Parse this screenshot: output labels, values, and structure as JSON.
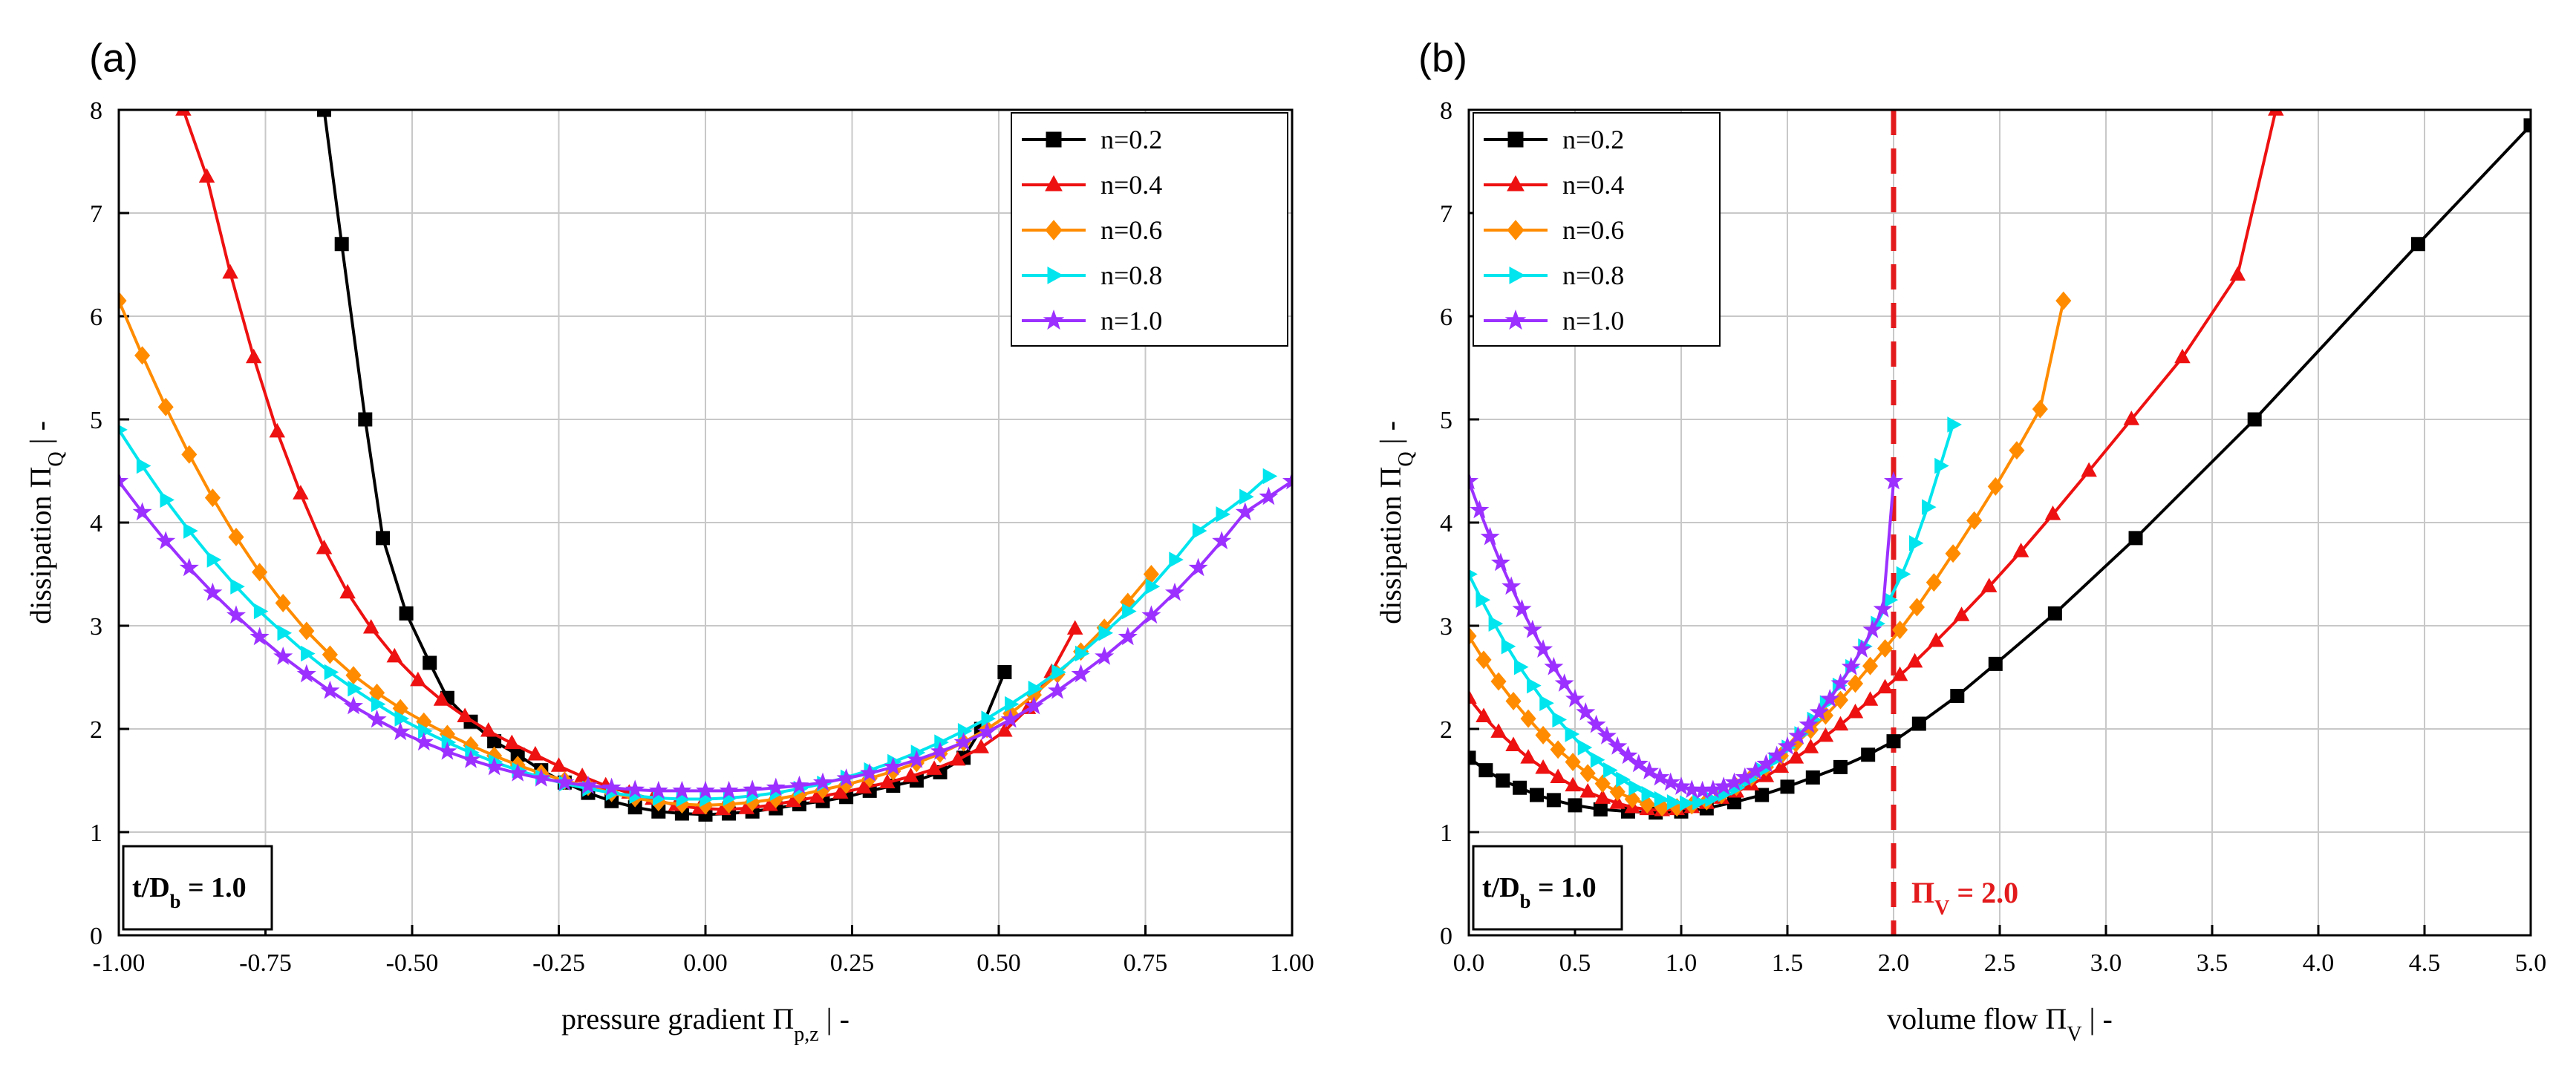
{
  "colors": {
    "n=0.2": "#000000",
    "n=0.4": "#ee1111",
    "n=0.6": "#ff8c00",
    "n=0.8": "#00e5ee",
    "n=1.0": "#9b30ff",
    "annotation": "#e31a1c",
    "grid": "#c8c8c8"
  },
  "chart_data": [
    {
      "type": "line",
      "panel_label": "(a)",
      "xlabel": {
        "main": "pressure gradient Π",
        "sub": "p,z",
        "suffix": " |  -"
      },
      "ylabel": {
        "main": "dissipation Π",
        "sub": "Q",
        "suffix": " |  -"
      },
      "xlim": [
        -1.0,
        1.0
      ],
      "ylim": [
        0,
        8
      ],
      "xticks": [
        "-1.00",
        "-0.75",
        "-0.50",
        "-0.25",
        "0.00",
        "0.25",
        "0.50",
        "0.75",
        "1.00"
      ],
      "yticks": [
        "0",
        "1",
        "2",
        "3",
        "4",
        "5",
        "6",
        "7",
        "8"
      ],
      "grid": true,
      "legend": "top-right",
      "box_label": {
        "main": "t/D",
        "sub": "b",
        "suffix": " = 1.0"
      },
      "series": [
        {
          "name": "n=0.2",
          "marker": "square",
          "x": [
            -0.65,
            -0.62,
            -0.58,
            -0.55,
            -0.51,
            -0.47,
            -0.44,
            -0.4,
            -0.36,
            -0.32,
            -0.28,
            -0.24,
            -0.2,
            -0.16,
            -0.12,
            -0.08,
            -0.04,
            0.0,
            0.04,
            0.08,
            0.12,
            0.16,
            0.2,
            0.24,
            0.28,
            0.32,
            0.36,
            0.4,
            0.44,
            0.47,
            0.51
          ],
          "y": [
            8.0,
            6.7,
            5.0,
            3.85,
            3.12,
            2.64,
            2.3,
            2.07,
            1.88,
            1.75,
            1.6,
            1.48,
            1.38,
            1.3,
            1.24,
            1.2,
            1.18,
            1.17,
            1.18,
            1.2,
            1.23,
            1.27,
            1.3,
            1.34,
            1.4,
            1.45,
            1.5,
            1.58,
            1.72,
            2.0,
            2.55
          ]
        },
        {
          "name": "n=0.4",
          "marker": "triangle-up",
          "x": [
            -0.89,
            -0.85,
            -0.81,
            -0.77,
            -0.73,
            -0.69,
            -0.65,
            -0.61,
            -0.57,
            -0.53,
            -0.49,
            -0.45,
            -0.41,
            -0.37,
            -0.33,
            -0.29,
            -0.25,
            -0.21,
            -0.17,
            -0.13,
            -0.09,
            -0.05,
            -0.01,
            0.03,
            0.07,
            0.11,
            0.15,
            0.19,
            0.23,
            0.27,
            0.31,
            0.35,
            0.39,
            0.43,
            0.47,
            0.51,
            0.55,
            0.59,
            0.63
          ],
          "y": [
            8.0,
            7.35,
            6.42,
            5.6,
            4.88,
            4.28,
            3.75,
            3.32,
            2.98,
            2.7,
            2.47,
            2.28,
            2.12,
            1.98,
            1.86,
            1.75,
            1.64,
            1.54,
            1.45,
            1.38,
            1.32,
            1.26,
            1.23,
            1.22,
            1.23,
            1.26,
            1.3,
            1.34,
            1.38,
            1.43,
            1.48,
            1.54,
            1.61,
            1.7,
            1.82,
            1.98,
            2.2,
            2.55,
            2.97
          ]
        },
        {
          "name": "n=0.6",
          "marker": "diamond",
          "x": [
            -1.0,
            -0.96,
            -0.92,
            -0.88,
            -0.84,
            -0.8,
            -0.76,
            -0.72,
            -0.68,
            -0.64,
            -0.6,
            -0.56,
            -0.52,
            -0.48,
            -0.44,
            -0.4,
            -0.36,
            -0.32,
            -0.28,
            -0.24,
            -0.2,
            -0.16,
            -0.12,
            -0.08,
            -0.04,
            0.0,
            0.04,
            0.08,
            0.12,
            0.16,
            0.2,
            0.24,
            0.28,
            0.32,
            0.36,
            0.4,
            0.44,
            0.48,
            0.52,
            0.56,
            0.6,
            0.64,
            0.68,
            0.72,
            0.76
          ],
          "y": [
            6.15,
            5.62,
            5.12,
            4.66,
            4.24,
            3.86,
            3.52,
            3.22,
            2.95,
            2.72,
            2.52,
            2.35,
            2.2,
            2.07,
            1.95,
            1.84,
            1.74,
            1.65,
            1.57,
            1.5,
            1.44,
            1.38,
            1.33,
            1.29,
            1.27,
            1.26,
            1.27,
            1.29,
            1.32,
            1.36,
            1.41,
            1.46,
            1.52,
            1.59,
            1.67,
            1.76,
            1.87,
            2.0,
            2.15,
            2.33,
            2.53,
            2.75,
            2.98,
            3.23,
            3.5
          ]
        },
        {
          "name": "n=0.8",
          "marker": "triangle-right",
          "x": [
            -1.0,
            -0.96,
            -0.92,
            -0.88,
            -0.84,
            -0.8,
            -0.76,
            -0.72,
            -0.68,
            -0.64,
            -0.6,
            -0.56,
            -0.52,
            -0.48,
            -0.44,
            -0.4,
            -0.36,
            -0.32,
            -0.28,
            -0.24,
            -0.2,
            -0.16,
            -0.12,
            -0.08,
            -0.04,
            0.0,
            0.04,
            0.08,
            0.12,
            0.16,
            0.2,
            0.24,
            0.28,
            0.32,
            0.36,
            0.4,
            0.44,
            0.48,
            0.52,
            0.56,
            0.6,
            0.64,
            0.68,
            0.72,
            0.76,
            0.8,
            0.84,
            0.88,
            0.92,
            0.96
          ],
          "y": [
            4.9,
            4.55,
            4.22,
            3.92,
            3.64,
            3.38,
            3.14,
            2.93,
            2.73,
            2.55,
            2.39,
            2.24,
            2.1,
            1.98,
            1.87,
            1.77,
            1.68,
            1.6,
            1.53,
            1.47,
            1.42,
            1.38,
            1.35,
            1.33,
            1.32,
            1.32,
            1.33,
            1.35,
            1.38,
            1.42,
            1.47,
            1.53,
            1.6,
            1.68,
            1.77,
            1.87,
            1.98,
            2.1,
            2.24,
            2.39,
            2.55,
            2.73,
            2.93,
            3.14,
            3.38,
            3.64,
            3.92,
            4.08,
            4.25,
            4.45
          ]
        },
        {
          "name": "n=1.0",
          "marker": "star",
          "x": [
            -1.0,
            -0.96,
            -0.92,
            -0.88,
            -0.84,
            -0.8,
            -0.76,
            -0.72,
            -0.68,
            -0.64,
            -0.6,
            -0.56,
            -0.52,
            -0.48,
            -0.44,
            -0.4,
            -0.36,
            -0.32,
            -0.28,
            -0.24,
            -0.2,
            -0.16,
            -0.12,
            -0.08,
            -0.04,
            0.0,
            0.04,
            0.08,
            0.12,
            0.16,
            0.2,
            0.24,
            0.28,
            0.32,
            0.36,
            0.4,
            0.44,
            0.48,
            0.52,
            0.56,
            0.6,
            0.64,
            0.68,
            0.72,
            0.76,
            0.8,
            0.84,
            0.88,
            0.92,
            0.96,
            1.0
          ],
          "y": [
            4.4,
            4.1,
            3.82,
            3.56,
            3.32,
            3.1,
            2.89,
            2.7,
            2.53,
            2.37,
            2.22,
            2.09,
            1.97,
            1.87,
            1.78,
            1.7,
            1.63,
            1.57,
            1.52,
            1.48,
            1.45,
            1.43,
            1.41,
            1.4,
            1.4,
            1.4,
            1.4,
            1.41,
            1.43,
            1.45,
            1.48,
            1.52,
            1.57,
            1.63,
            1.7,
            1.78,
            1.87,
            1.97,
            2.09,
            2.22,
            2.37,
            2.53,
            2.7,
            2.89,
            3.1,
            3.32,
            3.56,
            3.82,
            4.1,
            4.25,
            4.4
          ]
        }
      ]
    },
    {
      "type": "line",
      "panel_label": "(b)",
      "xlabel": {
        "main": "volume flow Π",
        "sub": "V",
        "suffix": " |  -"
      },
      "ylabel": {
        "main": "dissipation Π",
        "sub": "Q",
        "suffix": " |  -"
      },
      "xlim": [
        0,
        5.0
      ],
      "ylim": [
        0,
        8
      ],
      "xticks": [
        "0.0",
        "0.5",
        "1.0",
        "1.5",
        "2.0",
        "2.5",
        "3.0",
        "3.5",
        "4.0",
        "4.5",
        "5.0"
      ],
      "yticks": [
        "0",
        "1",
        "2",
        "3",
        "4",
        "5",
        "6",
        "7",
        "8"
      ],
      "grid": true,
      "legend": "top-left",
      "box_label": {
        "main": "t/D",
        "sub": "b",
        "suffix": " = 1.0"
      },
      "vline": {
        "x": 2.0,
        "label": {
          "main": "Π",
          "sub": "V",
          "suffix": " = 2.0"
        }
      },
      "series": [
        {
          "name": "n=0.2",
          "marker": "square",
          "x": [
            0.0,
            0.08,
            0.16,
            0.24,
            0.32,
            0.4,
            0.5,
            0.62,
            0.75,
            0.88,
            1.0,
            1.12,
            1.25,
            1.38,
            1.5,
            1.62,
            1.75,
            1.88,
            2.0,
            2.12,
            2.3,
            2.48,
            2.76,
            3.14,
            3.7,
            4.47,
            5.0
          ],
          "y": [
            1.72,
            1.6,
            1.5,
            1.43,
            1.36,
            1.31,
            1.26,
            1.22,
            1.2,
            1.19,
            1.2,
            1.23,
            1.29,
            1.36,
            1.44,
            1.53,
            1.63,
            1.75,
            1.88,
            2.05,
            2.32,
            2.63,
            3.12,
            3.85,
            5.0,
            6.7,
            7.85
          ]
        },
        {
          "name": "n=0.4",
          "marker": "triangle-up",
          "x": [
            0.0,
            0.07,
            0.14,
            0.21,
            0.28,
            0.35,
            0.42,
            0.49,
            0.56,
            0.63,
            0.7,
            0.77,
            0.84,
            0.91,
            0.98,
            1.05,
            1.12,
            1.19,
            1.26,
            1.33,
            1.4,
            1.47,
            1.54,
            1.61,
            1.68,
            1.75,
            1.82,
            1.89,
            1.96,
            2.03,
            2.1,
            2.2,
            2.32,
            2.45,
            2.6,
            2.75,
            2.92,
            3.12,
            3.36,
            3.62,
            3.8
          ],
          "y": [
            2.3,
            2.12,
            1.97,
            1.84,
            1.72,
            1.62,
            1.53,
            1.45,
            1.39,
            1.33,
            1.28,
            1.24,
            1.22,
            1.21,
            1.22,
            1.24,
            1.28,
            1.33,
            1.39,
            1.46,
            1.54,
            1.63,
            1.72,
            1.82,
            1.93,
            2.04,
            2.16,
            2.28,
            2.4,
            2.52,
            2.65,
            2.85,
            3.1,
            3.38,
            3.72,
            4.08,
            4.5,
            5.0,
            5.6,
            6.4,
            8.0
          ]
        },
        {
          "name": "n=0.6",
          "marker": "diamond",
          "x": [
            0.0,
            0.07,
            0.14,
            0.21,
            0.28,
            0.35,
            0.42,
            0.49,
            0.56,
            0.63,
            0.7,
            0.77,
            0.84,
            0.91,
            0.98,
            1.05,
            1.12,
            1.19,
            1.26,
            1.33,
            1.4,
            1.47,
            1.54,
            1.61,
            1.68,
            1.75,
            1.82,
            1.89,
            1.96,
            2.03,
            2.11,
            2.19,
            2.28,
            2.38,
            2.48,
            2.58,
            2.69,
            2.8
          ],
          "y": [
            2.9,
            2.67,
            2.46,
            2.27,
            2.1,
            1.94,
            1.8,
            1.68,
            1.57,
            1.47,
            1.39,
            1.32,
            1.27,
            1.24,
            1.24,
            1.26,
            1.3,
            1.36,
            1.44,
            1.53,
            1.63,
            1.74,
            1.86,
            1.99,
            2.13,
            2.28,
            2.44,
            2.61,
            2.78,
            2.96,
            3.18,
            3.42,
            3.7,
            4.02,
            4.35,
            4.7,
            5.1,
            6.15
          ]
        },
        {
          "name": "n=0.8",
          "marker": "triangle-right",
          "x": [
            0.0,
            0.06,
            0.12,
            0.18,
            0.24,
            0.3,
            0.36,
            0.42,
            0.48,
            0.54,
            0.6,
            0.66,
            0.72,
            0.78,
            0.84,
            0.9,
            0.96,
            1.02,
            1.08,
            1.14,
            1.2,
            1.26,
            1.32,
            1.38,
            1.44,
            1.5,
            1.56,
            1.62,
            1.68,
            1.74,
            1.8,
            1.86,
            1.92,
            1.98,
            2.04,
            2.1,
            2.16,
            2.22,
            2.28
          ],
          "y": [
            3.5,
            3.25,
            3.02,
            2.8,
            2.6,
            2.42,
            2.25,
            2.09,
            1.95,
            1.82,
            1.7,
            1.6,
            1.51,
            1.43,
            1.37,
            1.32,
            1.29,
            1.28,
            1.29,
            1.32,
            1.37,
            1.43,
            1.51,
            1.6,
            1.7,
            1.82,
            1.95,
            2.09,
            2.25,
            2.42,
            2.6,
            2.8,
            3.02,
            3.25,
            3.5,
            3.8,
            4.15,
            4.55,
            4.95
          ]
        },
        {
          "name": "n=1.0",
          "marker": "star",
          "x": [
            0.0,
            0.05,
            0.1,
            0.15,
            0.2,
            0.25,
            0.3,
            0.35,
            0.4,
            0.45,
            0.5,
            0.55,
            0.6,
            0.65,
            0.7,
            0.75,
            0.8,
            0.85,
            0.9,
            0.95,
            1.0,
            1.05,
            1.1,
            1.15,
            1.2,
            1.25,
            1.3,
            1.35,
            1.4,
            1.45,
            1.5,
            1.55,
            1.6,
            1.65,
            1.7,
            1.75,
            1.8,
            1.85,
            1.9,
            1.95,
            2.0
          ],
          "y": [
            4.4,
            4.12,
            3.86,
            3.61,
            3.38,
            3.16,
            2.96,
            2.77,
            2.6,
            2.44,
            2.29,
            2.16,
            2.04,
            1.93,
            1.83,
            1.74,
            1.66,
            1.59,
            1.53,
            1.48,
            1.44,
            1.41,
            1.4,
            1.41,
            1.44,
            1.48,
            1.53,
            1.59,
            1.66,
            1.74,
            1.83,
            1.93,
            2.04,
            2.16,
            2.29,
            2.44,
            2.6,
            2.77,
            2.96,
            3.16,
            4.4
          ]
        }
      ]
    }
  ]
}
